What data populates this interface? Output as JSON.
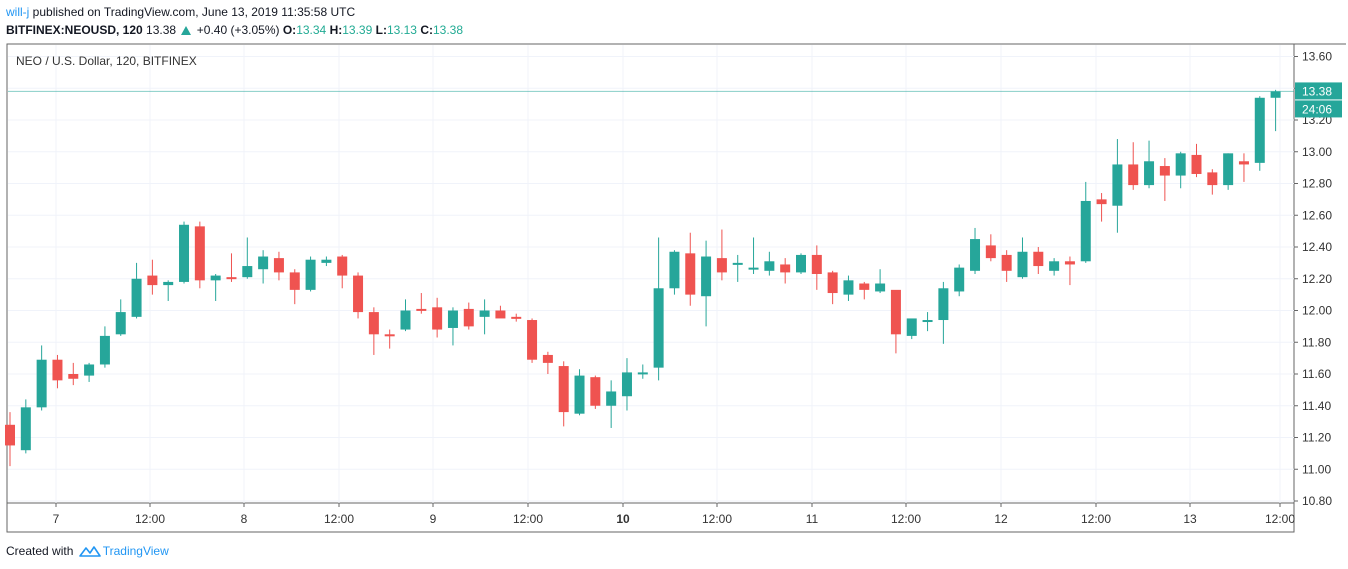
{
  "header": {
    "user": "will-j",
    "published_text": "published on TradingView.com, June 13, 2019 11:35:58 UTC",
    "symbol": "BITFINEX:NEOUSD, 120",
    "last": "13.38",
    "change": "+0.40 (+3.05%)",
    "o_label": "O:",
    "o_value": "13.34",
    "h_label": "H:",
    "h_value": "13.39",
    "l_label": "L:",
    "l_value": "13.13",
    "c_label": "C:",
    "c_value": "13.38"
  },
  "footer": {
    "created_with": "Created with",
    "brand": "TradingView"
  },
  "colors": {
    "up": "#26a69a",
    "down": "#ef5350",
    "grid": "#f0f3fa",
    "axis": "#555555",
    "price_line": "#26a69a"
  },
  "chart_data": {
    "type": "candlestick",
    "title": "NEO / U.S. Dollar, 120, BITFINEX",
    "ylim": [
      10.78,
      13.69
    ],
    "y_ticks": [
      "10.80",
      "11.00",
      "11.20",
      "11.40",
      "11.60",
      "11.80",
      "12.00",
      "12.20",
      "12.40",
      "12.60",
      "12.80",
      "13.00",
      "13.20",
      "13.40",
      "13.60"
    ],
    "x_tick_labels": [
      "7",
      "12:00",
      "8",
      "12:00",
      "9",
      "12:00",
      "10",
      "12:00",
      "11",
      "12:00",
      "12",
      "12:00",
      "13",
      "12:00"
    ],
    "bold_x_tick": "10",
    "last_price_label": "13.38",
    "countdown_label": "24:06",
    "grid": true,
    "candles": [
      {
        "o": 11.28,
        "h": 11.36,
        "l": 11.02,
        "c": 11.15
      },
      {
        "o": 11.12,
        "h": 11.44,
        "l": 11.1,
        "c": 11.39
      },
      {
        "o": 11.39,
        "h": 11.78,
        "l": 11.37,
        "c": 11.69
      },
      {
        "o": 11.69,
        "h": 11.72,
        "l": 11.51,
        "c": 11.56
      },
      {
        "o": 11.6,
        "h": 11.67,
        "l": 11.53,
        "c": 11.57
      },
      {
        "o": 11.59,
        "h": 11.67,
        "l": 11.55,
        "c": 11.66
      },
      {
        "o": 11.66,
        "h": 11.9,
        "l": 11.64,
        "c": 11.84
      },
      {
        "o": 11.85,
        "h": 12.07,
        "l": 11.84,
        "c": 11.99
      },
      {
        "o": 11.96,
        "h": 12.3,
        "l": 11.95,
        "c": 12.2
      },
      {
        "o": 12.22,
        "h": 12.32,
        "l": 12.1,
        "c": 12.16
      },
      {
        "o": 12.16,
        "h": 12.19,
        "l": 12.06,
        "c": 12.18
      },
      {
        "o": 12.18,
        "h": 12.56,
        "l": 12.17,
        "c": 12.54
      },
      {
        "o": 12.53,
        "h": 12.56,
        "l": 12.14,
        "c": 12.19
      },
      {
        "o": 12.19,
        "h": 12.23,
        "l": 12.06,
        "c": 12.22
      },
      {
        "o": 12.21,
        "h": 12.36,
        "l": 12.18,
        "c": 12.2
      },
      {
        "o": 12.21,
        "h": 12.46,
        "l": 12.2,
        "c": 12.28
      },
      {
        "o": 12.26,
        "h": 12.38,
        "l": 12.17,
        "c": 12.34
      },
      {
        "o": 12.33,
        "h": 12.37,
        "l": 12.19,
        "c": 12.24
      },
      {
        "o": 12.24,
        "h": 12.26,
        "l": 12.04,
        "c": 12.13
      },
      {
        "o": 12.13,
        "h": 12.34,
        "l": 12.12,
        "c": 12.32
      },
      {
        "o": 12.3,
        "h": 12.34,
        "l": 12.28,
        "c": 12.32
      },
      {
        "o": 12.34,
        "h": 12.35,
        "l": 12.14,
        "c": 12.22
      },
      {
        "o": 12.22,
        "h": 12.24,
        "l": 11.95,
        "c": 11.99
      },
      {
        "o": 11.99,
        "h": 12.02,
        "l": 11.72,
        "c": 11.85
      },
      {
        "o": 11.85,
        "h": 11.88,
        "l": 11.76,
        "c": 11.84
      },
      {
        "o": 11.88,
        "h": 12.07,
        "l": 11.87,
        "c": 12.0
      },
      {
        "o": 12.01,
        "h": 12.11,
        "l": 11.98,
        "c": 12.0
      },
      {
        "o": 12.02,
        "h": 12.08,
        "l": 11.83,
        "c": 11.88
      },
      {
        "o": 11.89,
        "h": 12.02,
        "l": 11.78,
        "c": 12.0
      },
      {
        "o": 12.01,
        "h": 12.05,
        "l": 11.88,
        "c": 11.9
      },
      {
        "o": 11.96,
        "h": 12.07,
        "l": 11.85,
        "c": 12.0
      },
      {
        "o": 12.0,
        "h": 12.03,
        "l": 11.96,
        "c": 11.95
      },
      {
        "o": 11.96,
        "h": 11.98,
        "l": 11.93,
        "c": 11.95
      },
      {
        "o": 11.94,
        "h": 11.95,
        "l": 11.67,
        "c": 11.69
      },
      {
        "o": 11.72,
        "h": 11.74,
        "l": 11.6,
        "c": 11.67
      },
      {
        "o": 11.65,
        "h": 11.68,
        "l": 11.27,
        "c": 11.36
      },
      {
        "o": 11.35,
        "h": 11.63,
        "l": 11.34,
        "c": 11.59
      },
      {
        "o": 11.58,
        "h": 11.59,
        "l": 11.38,
        "c": 11.4
      },
      {
        "o": 11.4,
        "h": 11.56,
        "l": 11.26,
        "c": 11.49
      },
      {
        "o": 11.46,
        "h": 11.7,
        "l": 11.37,
        "c": 11.61
      },
      {
        "o": 11.61,
        "h": 11.66,
        "l": 11.57,
        "c": 11.61
      },
      {
        "o": 11.64,
        "h": 12.46,
        "l": 11.56,
        "c": 12.14
      },
      {
        "o": 12.14,
        "h": 12.38,
        "l": 12.1,
        "c": 12.37
      },
      {
        "o": 12.36,
        "h": 12.49,
        "l": 12.03,
        "c": 12.1
      },
      {
        "o": 12.09,
        "h": 12.44,
        "l": 11.9,
        "c": 12.34
      },
      {
        "o": 12.33,
        "h": 12.51,
        "l": 12.19,
        "c": 12.24
      },
      {
        "o": 12.3,
        "h": 12.35,
        "l": 12.18,
        "c": 12.3
      },
      {
        "o": 12.26,
        "h": 12.46,
        "l": 12.23,
        "c": 12.27
      },
      {
        "o": 12.25,
        "h": 12.37,
        "l": 12.22,
        "c": 12.31
      },
      {
        "o": 12.29,
        "h": 12.33,
        "l": 12.17,
        "c": 12.24
      },
      {
        "o": 12.24,
        "h": 12.36,
        "l": 12.23,
        "c": 12.35
      },
      {
        "o": 12.35,
        "h": 12.41,
        "l": 12.13,
        "c": 12.23
      },
      {
        "o": 12.24,
        "h": 12.25,
        "l": 12.04,
        "c": 12.11
      },
      {
        "o": 12.1,
        "h": 12.22,
        "l": 12.06,
        "c": 12.19
      },
      {
        "o": 12.17,
        "h": 12.18,
        "l": 12.07,
        "c": 12.13
      },
      {
        "o": 12.12,
        "h": 12.26,
        "l": 12.11,
        "c": 12.17
      },
      {
        "o": 12.13,
        "h": 12.12,
        "l": 11.73,
        "c": 11.85
      },
      {
        "o": 11.84,
        "h": 11.93,
        "l": 11.82,
        "c": 11.95
      },
      {
        "o": 11.94,
        "h": 11.99,
        "l": 11.87,
        "c": 11.94
      },
      {
        "o": 11.94,
        "h": 12.18,
        "l": 11.79,
        "c": 12.14
      },
      {
        "o": 12.12,
        "h": 12.29,
        "l": 12.09,
        "c": 12.27
      },
      {
        "o": 12.25,
        "h": 12.52,
        "l": 12.23,
        "c": 12.45
      },
      {
        "o": 12.41,
        "h": 12.48,
        "l": 12.31,
        "c": 12.33
      },
      {
        "o": 12.35,
        "h": 12.38,
        "l": 12.18,
        "c": 12.25
      },
      {
        "o": 12.21,
        "h": 12.46,
        "l": 12.2,
        "c": 12.37
      },
      {
        "o": 12.37,
        "h": 12.4,
        "l": 12.23,
        "c": 12.28
      },
      {
        "o": 12.25,
        "h": 12.33,
        "l": 12.22,
        "c": 12.31
      },
      {
        "o": 12.31,
        "h": 12.34,
        "l": 12.16,
        "c": 12.29
      },
      {
        "o": 12.31,
        "h": 12.81,
        "l": 12.3,
        "c": 12.69
      },
      {
        "o": 12.7,
        "h": 12.74,
        "l": 12.56,
        "c": 12.67
      },
      {
        "o": 12.66,
        "h": 13.08,
        "l": 12.49,
        "c": 12.92
      },
      {
        "o": 12.92,
        "h": 13.06,
        "l": 12.76,
        "c": 12.79
      },
      {
        "o": 12.79,
        "h": 13.07,
        "l": 12.77,
        "c": 12.94
      },
      {
        "o": 12.91,
        "h": 12.96,
        "l": 12.69,
        "c": 12.85
      },
      {
        "o": 12.85,
        "h": 13.0,
        "l": 12.77,
        "c": 12.99
      },
      {
        "o": 12.98,
        "h": 13.05,
        "l": 12.84,
        "c": 12.86
      },
      {
        "o": 12.87,
        "h": 12.89,
        "l": 12.73,
        "c": 12.79
      },
      {
        "o": 12.79,
        "h": 12.99,
        "l": 12.76,
        "c": 12.99
      },
      {
        "o": 12.94,
        "h": 12.99,
        "l": 12.81,
        "c": 12.92
      },
      {
        "o": 12.93,
        "h": 13.35,
        "l": 12.88,
        "c": 13.34
      },
      {
        "o": 13.34,
        "h": 13.39,
        "l": 13.13,
        "c": 13.38
      }
    ]
  }
}
